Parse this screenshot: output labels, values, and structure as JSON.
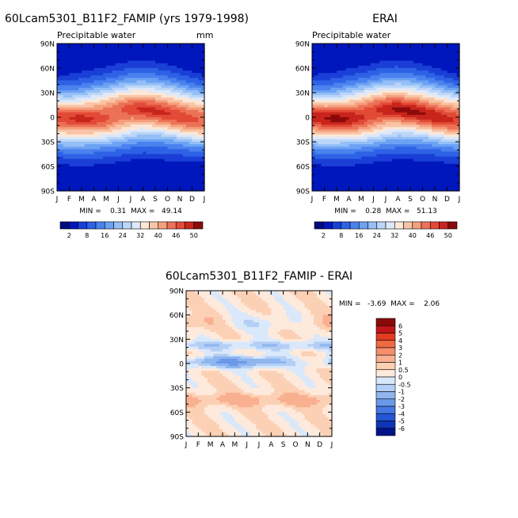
{
  "chart_data": [
    {
      "type": "heatmap",
      "title": "60Lcam5301_B11F2_FAMIP (yrs 1979-1998)",
      "subtitle": "Precipitable water",
      "units": "mm",
      "x_tick_labels": [
        "J",
        "F",
        "M",
        "A",
        "M",
        "J",
        "J",
        "A",
        "S",
        "O",
        "N",
        "D",
        "J"
      ],
      "y_tick_labels": [
        "90N",
        "60N",
        "30N",
        "0",
        "30S",
        "60S",
        "90S"
      ],
      "y_tick_values": [
        90,
        60,
        30,
        0,
        -30,
        -60,
        -90
      ],
      "stats_text": "MIN =    0.31  MAX =   49.14",
      "min": 0.31,
      "max": 49.14,
      "colorbar_labels": [
        "2",
        "8",
        "16",
        "24",
        "32",
        "40",
        "46",
        "50"
      ],
      "colorbar_levels": [
        2,
        5,
        8,
        12,
        16,
        20,
        24,
        28,
        32,
        36,
        40,
        43,
        46,
        48,
        50
      ],
      "peak_value": 49.14,
      "peak_latitude_by_month": [
        -2,
        -3,
        -2,
        0,
        2,
        5,
        8,
        9,
        8,
        6,
        3,
        0,
        -2
      ]
    },
    {
      "type": "heatmap",
      "title": "ERAI",
      "subtitle": "Precipitable water",
      "x_tick_labels": [
        "J",
        "F",
        "M",
        "A",
        "M",
        "J",
        "J",
        "A",
        "S",
        "O",
        "N",
        "D",
        "J"
      ],
      "y_tick_labels": [
        "90N",
        "60N",
        "30N",
        "0",
        "30S",
        "60S",
        "90S"
      ],
      "y_tick_values": [
        90,
        60,
        30,
        0,
        -30,
        -60,
        -90
      ],
      "stats_text": "MIN =    0.28  MAX =   51.13",
      "min": 0.28,
      "max": 51.13,
      "colorbar_labels": [
        "2",
        "8",
        "16",
        "24",
        "32",
        "40",
        "46",
        "50"
      ],
      "colorbar_levels": [
        2,
        5,
        8,
        12,
        16,
        20,
        24,
        28,
        32,
        36,
        40,
        43,
        46,
        48,
        50
      ],
      "peak_value": 51.13,
      "peak_latitude_by_month": [
        -2,
        -3,
        -2,
        0,
        2,
        5,
        8,
        9,
        8,
        6,
        3,
        0,
        -2
      ]
    },
    {
      "type": "heatmap",
      "title": "60Lcam5301_B11F2_FAMIP - ERAI",
      "x_tick_labels": [
        "J",
        "F",
        "M",
        "A",
        "M",
        "J",
        "J",
        "A",
        "S",
        "O",
        "N",
        "D",
        "J"
      ],
      "y_tick_labels": [
        "90N",
        "60N",
        "30N",
        "0",
        "30S",
        "60S",
        "90S"
      ],
      "y_tick_values": [
        90,
        60,
        30,
        0,
        -30,
        -60,
        -90
      ],
      "stats_text": "MIN =   -3.69  MAX =    2.06",
      "min": -3.69,
      "max": 2.06,
      "colorbar_labels": [
        "6",
        "5",
        "4",
        "3",
        "2",
        "1",
        "0.5",
        "0",
        "-0.5",
        "-1",
        "-2",
        "-3",
        "-4",
        "-5",
        "-6"
      ],
      "colorbar_levels": [
        6,
        5,
        4,
        3,
        2,
        1,
        0.5,
        0,
        -0.5,
        -1,
        -2,
        -3,
        -4,
        -5,
        -6
      ]
    }
  ],
  "colors": {
    "seq_scale": [
      "#000a80",
      "#0017bd",
      "#1a3fd6",
      "#2e62e6",
      "#4a82ee",
      "#6da2f3",
      "#94bff7",
      "#bcd6f9",
      "#dde9fb",
      "#fde7d6",
      "#f9c4a6",
      "#f59f7c",
      "#ec7257",
      "#e24a36",
      "#c8251d",
      "#8a0a0a"
    ],
    "div_scale": [
      "#8a0a0a",
      "#c0161a",
      "#e23b22",
      "#ee6a44",
      "#f58f6c",
      "#f9b090",
      "#fcd0b4",
      "#feeadc",
      "#d9e8fb",
      "#b4cff5",
      "#8fb5ef",
      "#6a99e8",
      "#4478e0",
      "#2456d6",
      "#0e35b8",
      "#00138a"
    ]
  }
}
